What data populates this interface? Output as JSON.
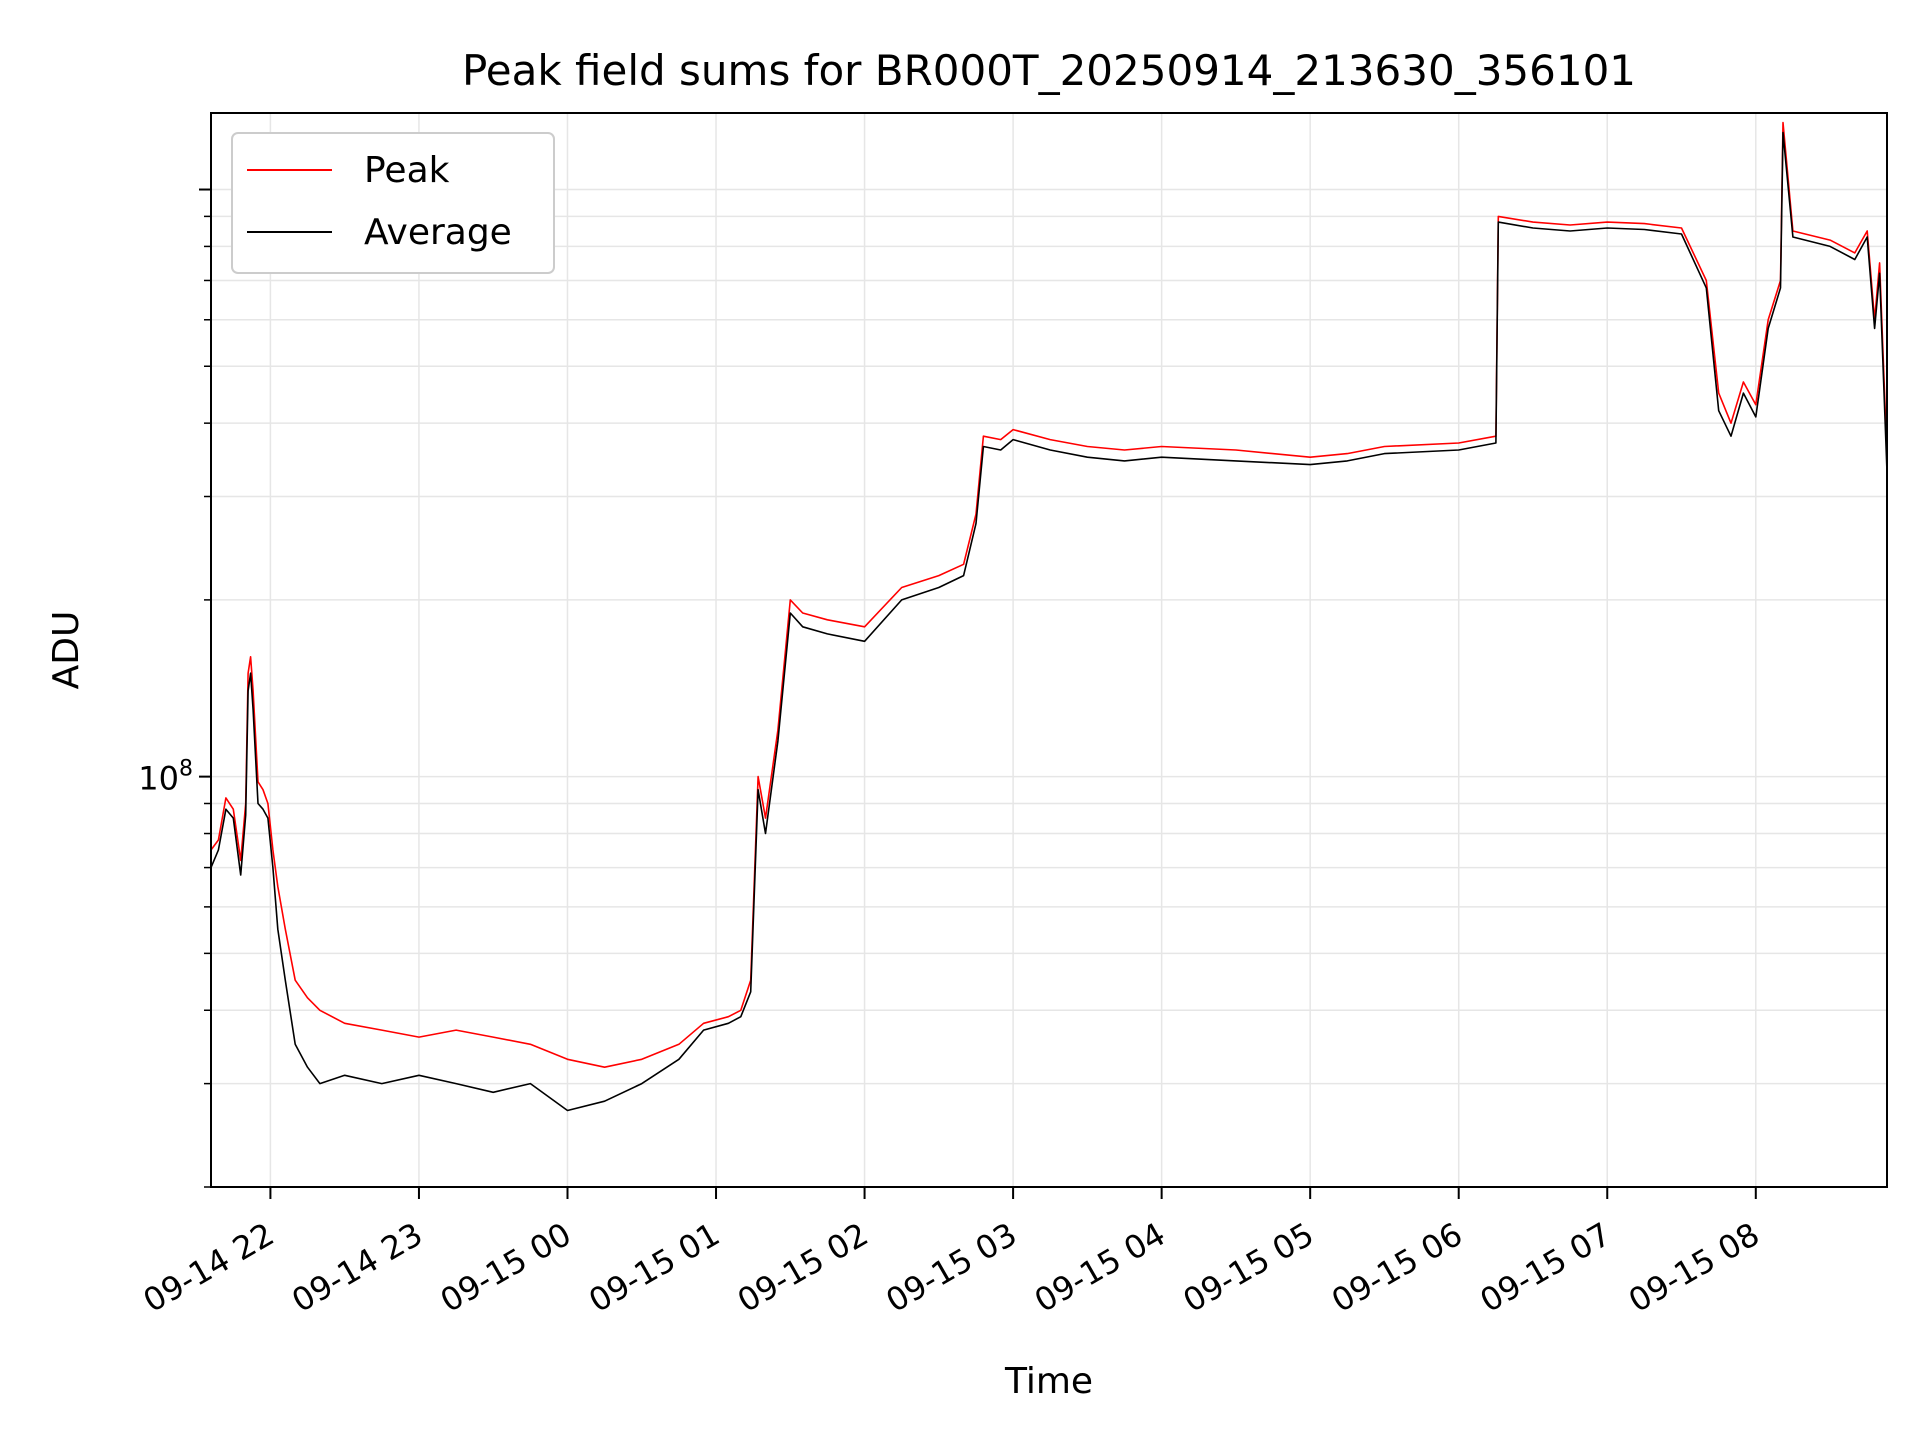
{
  "chart_data": {
    "type": "line",
    "title": "Peak field sums for BR000T_20250914_213630_356101",
    "xlabel": "Time",
    "ylabel": "ADU",
    "yscale": "log",
    "x_range": [
      "2025-09-14 21:36",
      "2025-09-15 08:53"
    ],
    "ylim": [
      20000000,
      1350000000
    ],
    "y_tick_labels": [
      {
        "value": 100000000,
        "label": "10^8"
      }
    ],
    "x_ticks": [
      {
        "time": "2025-09-14 22:00",
        "label": "09-14 22"
      },
      {
        "time": "2025-09-14 23:00",
        "label": "09-14 23"
      },
      {
        "time": "2025-09-15 00:00",
        "label": "09-15 00"
      },
      {
        "time": "2025-09-15 01:00",
        "label": "09-15 01"
      },
      {
        "time": "2025-09-15 02:00",
        "label": "09-15 02"
      },
      {
        "time": "2025-09-15 03:00",
        "label": "09-15 03"
      },
      {
        "time": "2025-09-15 04:00",
        "label": "09-15 04"
      },
      {
        "time": "2025-09-15 05:00",
        "label": "09-15 05"
      },
      {
        "time": "2025-09-15 06:00",
        "label": "09-15 06"
      },
      {
        "time": "2025-09-15 07:00",
        "label": "09-15 07"
      },
      {
        "time": "2025-09-15 08:00",
        "label": "09-15 08"
      }
    ],
    "grid": true,
    "legend_position": "top-left",
    "series": [
      {
        "name": "Peak",
        "color": "#ff0000",
        "x": [
          "2025-09-14 21:36",
          "2025-09-14 21:39",
          "2025-09-14 21:42",
          "2025-09-14 21:45",
          "2025-09-14 21:48",
          "2025-09-14 21:50",
          "2025-09-14 21:51",
          "2025-09-14 21:52",
          "2025-09-14 21:53",
          "2025-09-14 21:55",
          "2025-09-14 21:57",
          "2025-09-14 21:59",
          "2025-09-14 22:01",
          "2025-09-14 22:03",
          "2025-09-14 22:06",
          "2025-09-14 22:10",
          "2025-09-14 22:15",
          "2025-09-14 22:20",
          "2025-09-14 22:30",
          "2025-09-14 22:45",
          "2025-09-14 23:00",
          "2025-09-14 23:15",
          "2025-09-14 23:30",
          "2025-09-14 23:45",
          "2025-09-15 00:00",
          "2025-09-15 00:15",
          "2025-09-15 00:30",
          "2025-09-15 00:45",
          "2025-09-15 00:55",
          "2025-09-15 01:05",
          "2025-09-15 01:10",
          "2025-09-15 01:14",
          "2025-09-15 01:17",
          "2025-09-15 01:20",
          "2025-09-15 01:25",
          "2025-09-15 01:30",
          "2025-09-15 01:35",
          "2025-09-15 01:45",
          "2025-09-15 02:00",
          "2025-09-15 02:15",
          "2025-09-15 02:30",
          "2025-09-15 02:40",
          "2025-09-15 02:45",
          "2025-09-15 02:48",
          "2025-09-15 02:55",
          "2025-09-15 03:00",
          "2025-09-15 03:15",
          "2025-09-15 03:30",
          "2025-09-15 03:45",
          "2025-09-15 04:00",
          "2025-09-15 04:30",
          "2025-09-15 05:00",
          "2025-09-15 05:15",
          "2025-09-15 05:30",
          "2025-09-15 06:00",
          "2025-09-15 06:15",
          "2025-09-15 06:16",
          "2025-09-15 06:30",
          "2025-09-15 06:45",
          "2025-09-15 07:00",
          "2025-09-15 07:15",
          "2025-09-15 07:30",
          "2025-09-15 07:40",
          "2025-09-15 07:45",
          "2025-09-15 07:50",
          "2025-09-15 07:55",
          "2025-09-15 08:00",
          "2025-09-15 08:05",
          "2025-09-15 08:10",
          "2025-09-15 08:11",
          "2025-09-15 08:15",
          "2025-09-15 08:30",
          "2025-09-15 08:40",
          "2025-09-15 08:45",
          "2025-09-15 08:48",
          "2025-09-15 08:50",
          "2025-09-15 08:53"
        ],
        "values": [
          75000000,
          78000000,
          92000000,
          88000000,
          72000000,
          90000000,
          150000000,
          160000000,
          140000000,
          98000000,
          95000000,
          90000000,
          75000000,
          65000000,
          55000000,
          45000000,
          42000000,
          40000000,
          38000000,
          37000000,
          36000000,
          37000000,
          36000000,
          35000000,
          33000000,
          32000000,
          33000000,
          35000000,
          38000000,
          39000000,
          40000000,
          45000000,
          100000000,
          85000000,
          120000000,
          200000000,
          190000000,
          185000000,
          180000000,
          210000000,
          220000000,
          230000000,
          280000000,
          380000000,
          375000000,
          390000000,
          375000000,
          365000000,
          360000000,
          365000000,
          360000000,
          350000000,
          355000000,
          365000000,
          370000000,
          380000000,
          900000000,
          880000000,
          870000000,
          880000000,
          875000000,
          860000000,
          700000000,
          450000000,
          400000000,
          470000000,
          430000000,
          600000000,
          700000000,
          1300000000,
          850000000,
          820000000,
          780000000,
          850000000,
          600000000,
          750000000,
          350000000
        ]
      },
      {
        "name": "Average",
        "color": "#000000",
        "x": [
          "2025-09-14 21:36",
          "2025-09-14 21:39",
          "2025-09-14 21:42",
          "2025-09-14 21:45",
          "2025-09-14 21:48",
          "2025-09-14 21:50",
          "2025-09-14 21:51",
          "2025-09-14 21:52",
          "2025-09-14 21:53",
          "2025-09-14 21:55",
          "2025-09-14 21:57",
          "2025-09-14 21:59",
          "2025-09-14 22:01",
          "2025-09-14 22:03",
          "2025-09-14 22:06",
          "2025-09-14 22:10",
          "2025-09-14 22:15",
          "2025-09-14 22:20",
          "2025-09-14 22:30",
          "2025-09-14 22:45",
          "2025-09-14 23:00",
          "2025-09-14 23:15",
          "2025-09-14 23:30",
          "2025-09-14 23:45",
          "2025-09-15 00:00",
          "2025-09-15 00:15",
          "2025-09-15 00:30",
          "2025-09-15 00:45",
          "2025-09-15 00:55",
          "2025-09-15 01:05",
          "2025-09-15 01:10",
          "2025-09-15 01:14",
          "2025-09-15 01:17",
          "2025-09-15 01:20",
          "2025-09-15 01:25",
          "2025-09-15 01:30",
          "2025-09-15 01:35",
          "2025-09-15 01:45",
          "2025-09-15 02:00",
          "2025-09-15 02:15",
          "2025-09-15 02:30",
          "2025-09-15 02:40",
          "2025-09-15 02:45",
          "2025-09-15 02:48",
          "2025-09-15 02:55",
          "2025-09-15 03:00",
          "2025-09-15 03:15",
          "2025-09-15 03:30",
          "2025-09-15 03:45",
          "2025-09-15 04:00",
          "2025-09-15 04:30",
          "2025-09-15 05:00",
          "2025-09-15 05:15",
          "2025-09-15 05:30",
          "2025-09-15 06:00",
          "2025-09-15 06:15",
          "2025-09-15 06:16",
          "2025-09-15 06:30",
          "2025-09-15 06:45",
          "2025-09-15 07:00",
          "2025-09-15 07:15",
          "2025-09-15 07:30",
          "2025-09-15 07:40",
          "2025-09-15 07:45",
          "2025-09-15 07:50",
          "2025-09-15 07:55",
          "2025-09-15 08:00",
          "2025-09-15 08:05",
          "2025-09-15 08:10",
          "2025-09-15 08:11",
          "2025-09-15 08:15",
          "2025-09-15 08:30",
          "2025-09-15 08:40",
          "2025-09-15 08:45",
          "2025-09-15 08:48",
          "2025-09-15 08:50",
          "2025-09-15 08:53"
        ],
        "values": [
          70000000,
          75000000,
          88000000,
          85000000,
          68000000,
          86000000,
          140000000,
          150000000,
          130000000,
          90000000,
          88000000,
          85000000,
          70000000,
          55000000,
          45000000,
          35000000,
          32000000,
          30000000,
          31000000,
          30000000,
          31000000,
          30000000,
          29000000,
          30000000,
          27000000,
          28000000,
          30000000,
          33000000,
          37000000,
          38000000,
          39000000,
          43000000,
          95000000,
          80000000,
          115000000,
          190000000,
          180000000,
          175000000,
          170000000,
          200000000,
          210000000,
          220000000,
          270000000,
          365000000,
          360000000,
          375000000,
          360000000,
          350000000,
          345000000,
          350000000,
          345000000,
          340000000,
          345000000,
          355000000,
          360000000,
          370000000,
          880000000,
          860000000,
          850000000,
          860000000,
          855000000,
          840000000,
          680000000,
          420000000,
          380000000,
          450000000,
          410000000,
          580000000,
          680000000,
          1250000000,
          830000000,
          800000000,
          760000000,
          830000000,
          580000000,
          720000000,
          330000000
        ]
      }
    ]
  }
}
